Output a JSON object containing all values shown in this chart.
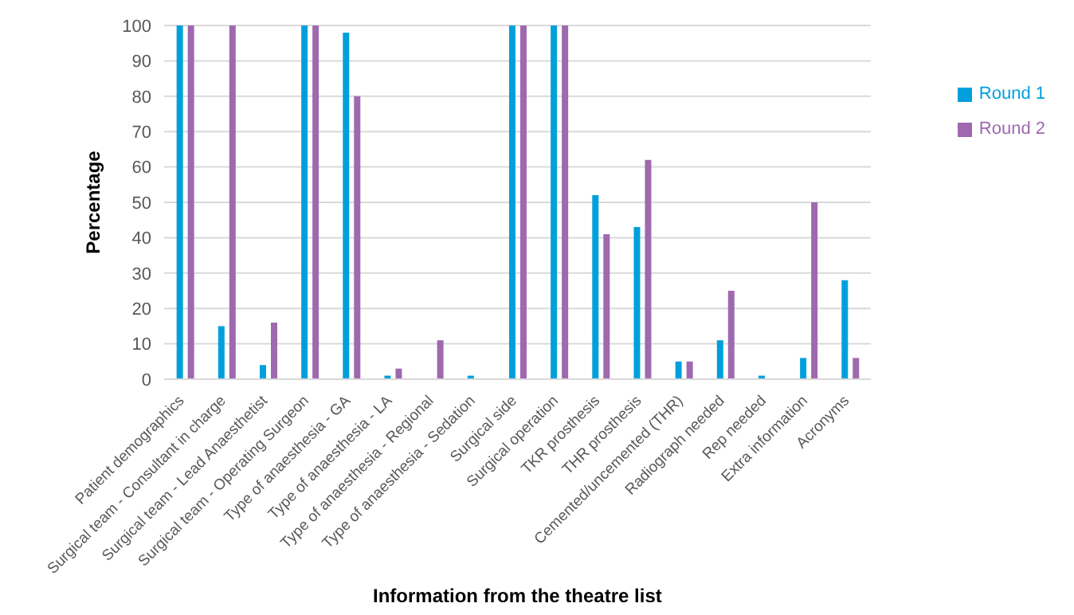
{
  "chart_data": {
    "type": "bar",
    "xlabel": "Information from the theatre list",
    "ylabel": "Percentage",
    "categories": [
      "Patient demographics",
      "Surgical team - Consultant in charge",
      "Surgical team - Lead Anaesthetist",
      "Surgical team - Operating Surgeon",
      "Type of anaesthesia - GA",
      "Type of anaesthesia - LA",
      "Type of anaesthesia - Regional",
      "Type of anaesthesia - Sedation",
      "Surgical side",
      "Surgical operation",
      "TKR prosthesis",
      "THR prosthesis",
      "Cemented/uncemented (THR)",
      "Radiograph needed",
      "Rep needed",
      "Extra information",
      "Acronyms"
    ],
    "series": [
      {
        "name": "Round 1",
        "color": "#00a0dc",
        "values": [
          100,
          15,
          4,
          100,
          98,
          1,
          0,
          1,
          100,
          100,
          52,
          43,
          5,
          11,
          1,
          6,
          28
        ]
      },
      {
        "name": "Round 2",
        "color": "#9e69af",
        "values": [
          100,
          100,
          16,
          100,
          80,
          3,
          11,
          0,
          100,
          100,
          41,
          62,
          5,
          25,
          0,
          50,
          6
        ]
      }
    ],
    "ylim": [
      0,
      100
    ],
    "yticks": [
      0,
      10,
      20,
      30,
      40,
      50,
      60,
      70,
      80,
      90,
      100
    ],
    "grid": "y",
    "legend": "top right"
  }
}
